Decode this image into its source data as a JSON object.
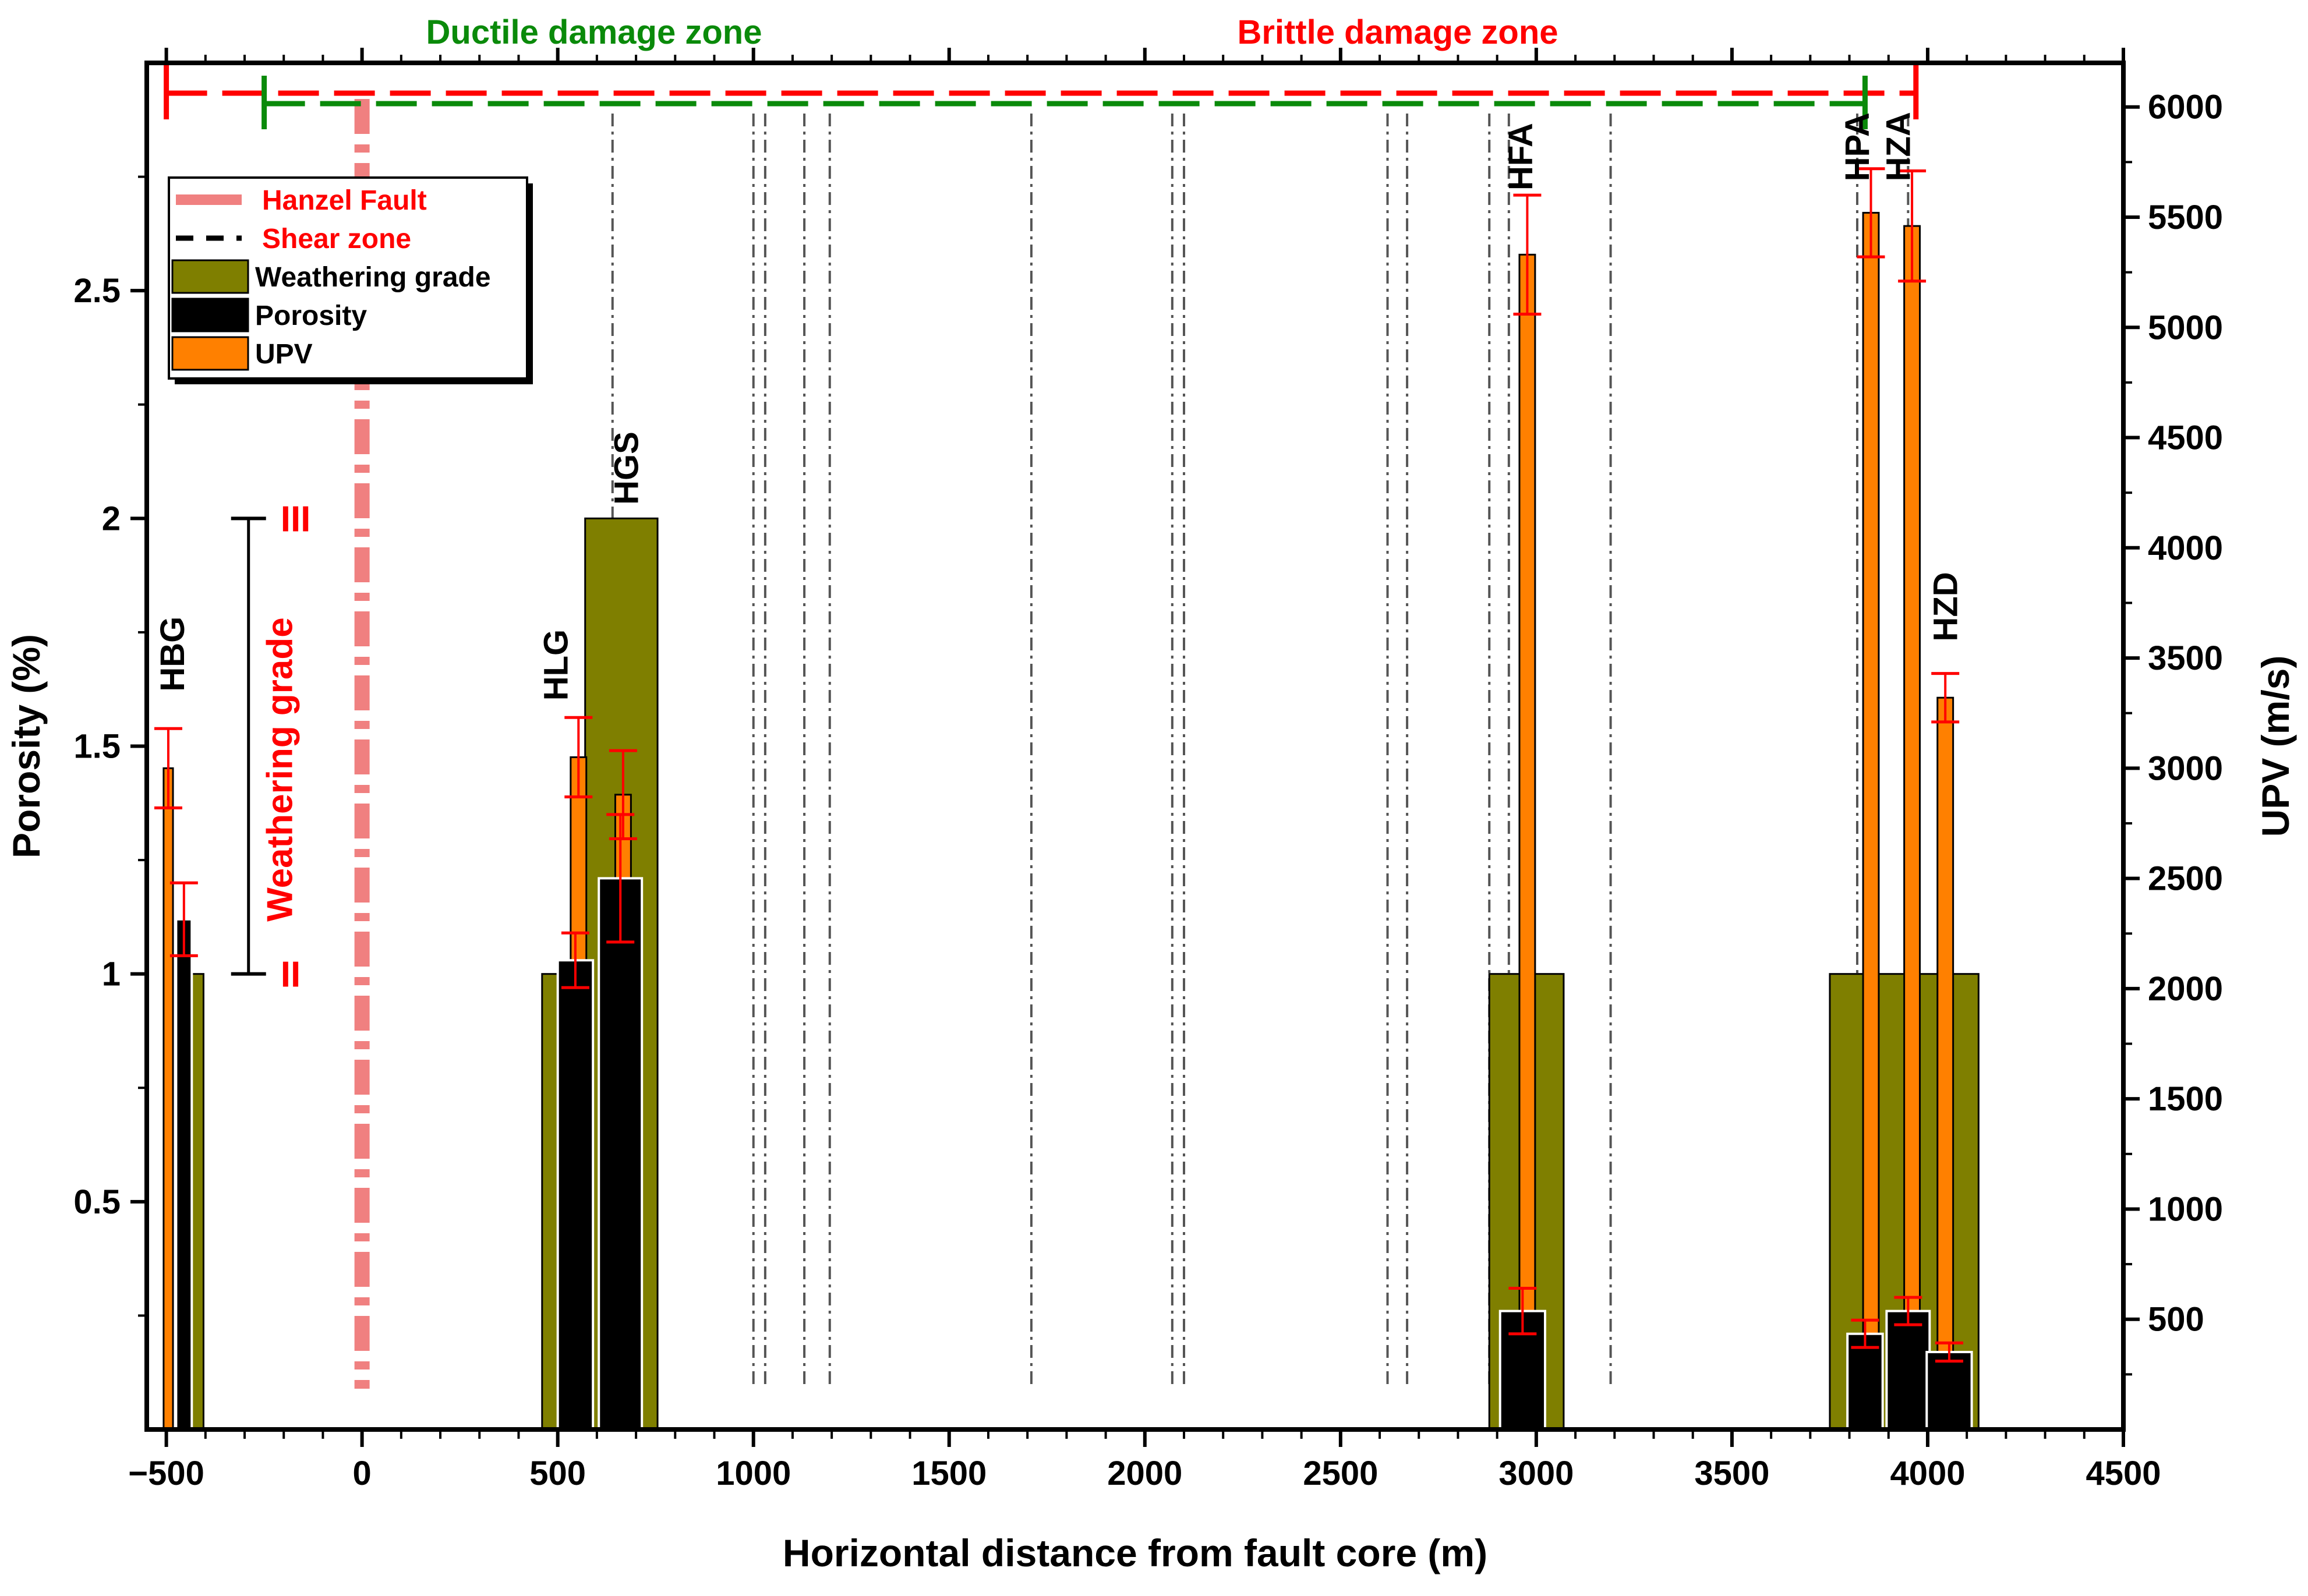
{
  "chart_data": {
    "type": "bar",
    "title": "",
    "xlabel": "Horizontal distance from fault core (m)",
    "ylabel_left": "Porosity (%)",
    "ylabel_right": "UPV (m/s)",
    "xlim": [
      -550,
      4500
    ],
    "ylim_left": [
      0,
      3.0
    ],
    "ylim_right": [
      0,
      6200
    ],
    "x_ticks": [
      -500,
      0,
      500,
      1000,
      1500,
      2000,
      2500,
      3000,
      3500,
      4000,
      4500
    ],
    "x_tick_labels": [
      "−500",
      "0",
      "500",
      "1000",
      "1500",
      "2000",
      "2500",
      "3000",
      "3500",
      "4000",
      "4500"
    ],
    "y_left_ticks": [
      0.5,
      1,
      1.5,
      2,
      2.5
    ],
    "y_left_tick_labels": [
      "0.5",
      "1",
      "1.5",
      "2",
      "2.5"
    ],
    "y_right_ticks": [
      500,
      1000,
      1500,
      2000,
      2500,
      3000,
      3500,
      4000,
      4500,
      5000,
      5500,
      6000
    ],
    "y_right_tick_labels": [
      "500",
      "1000",
      "1500",
      "2000",
      "2500",
      "3000",
      "3500",
      "4000",
      "4500",
      "5000",
      "5500",
      "6000"
    ],
    "zones": {
      "ductile": {
        "label": "Ductile damage zone",
        "color": "#0a8a0a",
        "x_start": -250,
        "x_end": 3840
      },
      "brittle": {
        "label": "Brittle damage zone",
        "color": "#ff0000",
        "x_start": -500,
        "x_end": 3970
      }
    },
    "hanzel_fault_x": 0,
    "shear_zone_lines_x": [
      640,
      1000,
      1030,
      1130,
      1195,
      1710,
      2070,
      2100,
      2620,
      2670,
      2880,
      2930,
      3190,
      3820,
      3950
    ],
    "series": [
      {
        "name": "Weathering grade",
        "color": "#7f7f00",
        "axis": "left",
        "bars": [
          {
            "x0": -440,
            "x1": -405,
            "value": 1
          },
          {
            "x0": 460,
            "x1": 570,
            "value": 1
          },
          {
            "x0": 570,
            "x1": 755,
            "value": 2
          },
          {
            "x0": 2880,
            "x1": 3070,
            "value": 1
          },
          {
            "x0": 3750,
            "x1": 4130,
            "value": 1
          }
        ]
      },
      {
        "name": "Porosity",
        "color": "#000000",
        "axis": "left",
        "bars": [
          {
            "x": -455,
            "width": 40,
            "value": 1.12,
            "err": 0.08
          },
          {
            "x": 545,
            "width": 90,
            "value": 1.03,
            "err": 0.06
          },
          {
            "x": 660,
            "width": 110,
            "value": 1.21,
            "err": 0.14
          },
          {
            "x": 2965,
            "width": 115,
            "value": 0.26,
            "err": 0.05
          },
          {
            "x": 3840,
            "width": 90,
            "value": 0.21,
            "err": 0.03
          },
          {
            "x": 3950,
            "width": 110,
            "value": 0.26,
            "err": 0.03
          },
          {
            "x": 4055,
            "width": 115,
            "value": 0.17,
            "err": 0.02
          }
        ]
      },
      {
        "name": "UPV",
        "color": "#ff8000",
        "axis": "right",
        "bars": [
          {
            "x": -495,
            "width": 24,
            "value": 3000,
            "err": 180
          },
          {
            "x": 553,
            "width": 40,
            "value": 3050,
            "err": 180
          },
          {
            "x": 667,
            "width": 40,
            "value": 2880,
            "err": 200
          },
          {
            "x": 2977,
            "width": 40,
            "value": 5330,
            "err": 270
          },
          {
            "x": 3855,
            "width": 40,
            "value": 5520,
            "err": 200
          },
          {
            "x": 3960,
            "width": 40,
            "value": 5460,
            "err": 250
          },
          {
            "x": 4045,
            "width": 40,
            "value": 3320,
            "err": 110
          }
        ]
      }
    ],
    "sample_labels": [
      {
        "text": "HBG",
        "x": -455,
        "y": 1.62
      },
      {
        "text": "HLG",
        "x": 525,
        "y": 1.6
      },
      {
        "text": "HGS",
        "x": 705,
        "y": 2.03
      },
      {
        "text": "HFA",
        "x": 2990,
        "y": 2.72
      },
      {
        "text": "HPA",
        "x": 3850,
        "y": 2.74
      },
      {
        "text": "HZA",
        "x": 3955,
        "y": 2.74
      },
      {
        "text": "HZD",
        "x": 4075,
        "y": 1.73
      }
    ],
    "weathering_scale": {
      "label": "Weathering grade",
      "x": -290,
      "marks": [
        {
          "value": 1,
          "label": "II"
        },
        {
          "value": 2,
          "label": "III"
        }
      ]
    },
    "legend": {
      "position": "top-left",
      "entries": [
        {
          "label": "Hanzel Fault",
          "style": "thick-line",
          "color": "#f08080",
          "text_color": "#ff0000"
        },
        {
          "label": "Shear zone",
          "style": "dashed-line",
          "color": "#000000",
          "text_color": "#ff0000"
        },
        {
          "label": "Weathering grade",
          "style": "box",
          "color": "#7f7f00",
          "text_color": "#000000"
        },
        {
          "label": "Porosity",
          "style": "box",
          "color": "#000000",
          "text_color": "#000000"
        },
        {
          "label": "UPV",
          "style": "box",
          "color": "#ff8000",
          "text_color": "#000000"
        }
      ]
    },
    "error_color": "#ff0000"
  }
}
